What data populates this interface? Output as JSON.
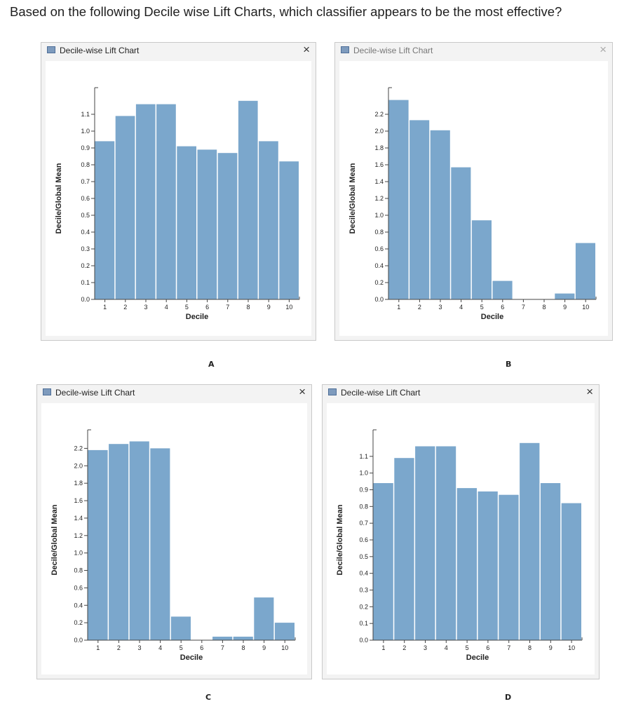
{
  "question": "Based on the following Decile wise Lift Charts, which classifier appears to be the most effective?",
  "colors": {
    "bar": "#7ba7cc",
    "axis": "#444444",
    "text": "#222222"
  },
  "chart_data": [
    {
      "id": "a",
      "type": "bar",
      "window_title": "Decile-wise Lift Chart",
      "close_label": "×",
      "letter": "A",
      "xlabel": "Decile",
      "ylabel": "Decile/Global Mean",
      "categories": [
        "1",
        "2",
        "3",
        "4",
        "5",
        "6",
        "7",
        "8",
        "9",
        "10"
      ],
      "values": [
        0.94,
        1.09,
        1.16,
        1.16,
        0.91,
        0.89,
        0.87,
        1.18,
        0.94,
        0.82
      ],
      "ylim": [
        0,
        1.2
      ],
      "yticks": [
        "0.0",
        "0.1",
        "0.2",
        "0.3",
        "0.4",
        "0.5",
        "0.6",
        "0.7",
        "0.8",
        "0.9",
        "1.0",
        "1.1"
      ]
    },
    {
      "id": "b",
      "type": "bar",
      "window_title": "Decile-wise Lift Chart",
      "close_label": "×",
      "letter": "B",
      "xlabel": "Decile",
      "ylabel": "Decile/Global Mean",
      "categories": [
        "1",
        "2",
        "3",
        "4",
        "5",
        "6",
        "7",
        "8",
        "9",
        "10"
      ],
      "values": [
        2.37,
        2.13,
        2.01,
        1.57,
        0.94,
        0.22,
        0.0,
        0.0,
        0.07,
        0.67
      ],
      "ylim": [
        0,
        2.4
      ],
      "yticks": [
        "0.0",
        "0.2",
        "0.4",
        "0.6",
        "0.8",
        "1.0",
        "1.2",
        "1.4",
        "1.6",
        "1.8",
        "2.0",
        "2.2"
      ]
    },
    {
      "id": "c",
      "type": "bar",
      "window_title": "Decile-wise Lift Chart",
      "close_label": "×",
      "letter": "C",
      "xlabel": "Decile",
      "ylabel": "Decile/Global Mean",
      "categories": [
        "1",
        "2",
        "3",
        "4",
        "5",
        "6",
        "7",
        "8",
        "9",
        "10"
      ],
      "values": [
        2.18,
        2.25,
        2.28,
        2.2,
        0.27,
        0.0,
        0.04,
        0.04,
        0.49,
        0.2
      ],
      "ylim": [
        0,
        2.3
      ],
      "yticks": [
        "0.0",
        "0.2",
        "0.4",
        "0.6",
        "0.8",
        "1.0",
        "1.2",
        "1.4",
        "1.6",
        "1.8",
        "2.0",
        "2.2"
      ]
    },
    {
      "id": "d",
      "type": "bar",
      "window_title": "Decile-wise Lift Chart",
      "close_label": "×",
      "letter": "D",
      "xlabel": "Decile",
      "ylabel": "Decile/Global Mean",
      "categories": [
        "1",
        "2",
        "3",
        "4",
        "5",
        "6",
        "7",
        "8",
        "9",
        "10"
      ],
      "values": [
        0.94,
        1.09,
        1.16,
        1.16,
        0.91,
        0.89,
        0.87,
        1.18,
        0.94,
        0.82
      ],
      "ylim": [
        0,
        1.2
      ],
      "yticks": [
        "0.0",
        "0.1",
        "0.2",
        "0.3",
        "0.4",
        "0.5",
        "0.6",
        "0.7",
        "0.8",
        "0.9",
        "1.0",
        "1.1"
      ]
    }
  ]
}
